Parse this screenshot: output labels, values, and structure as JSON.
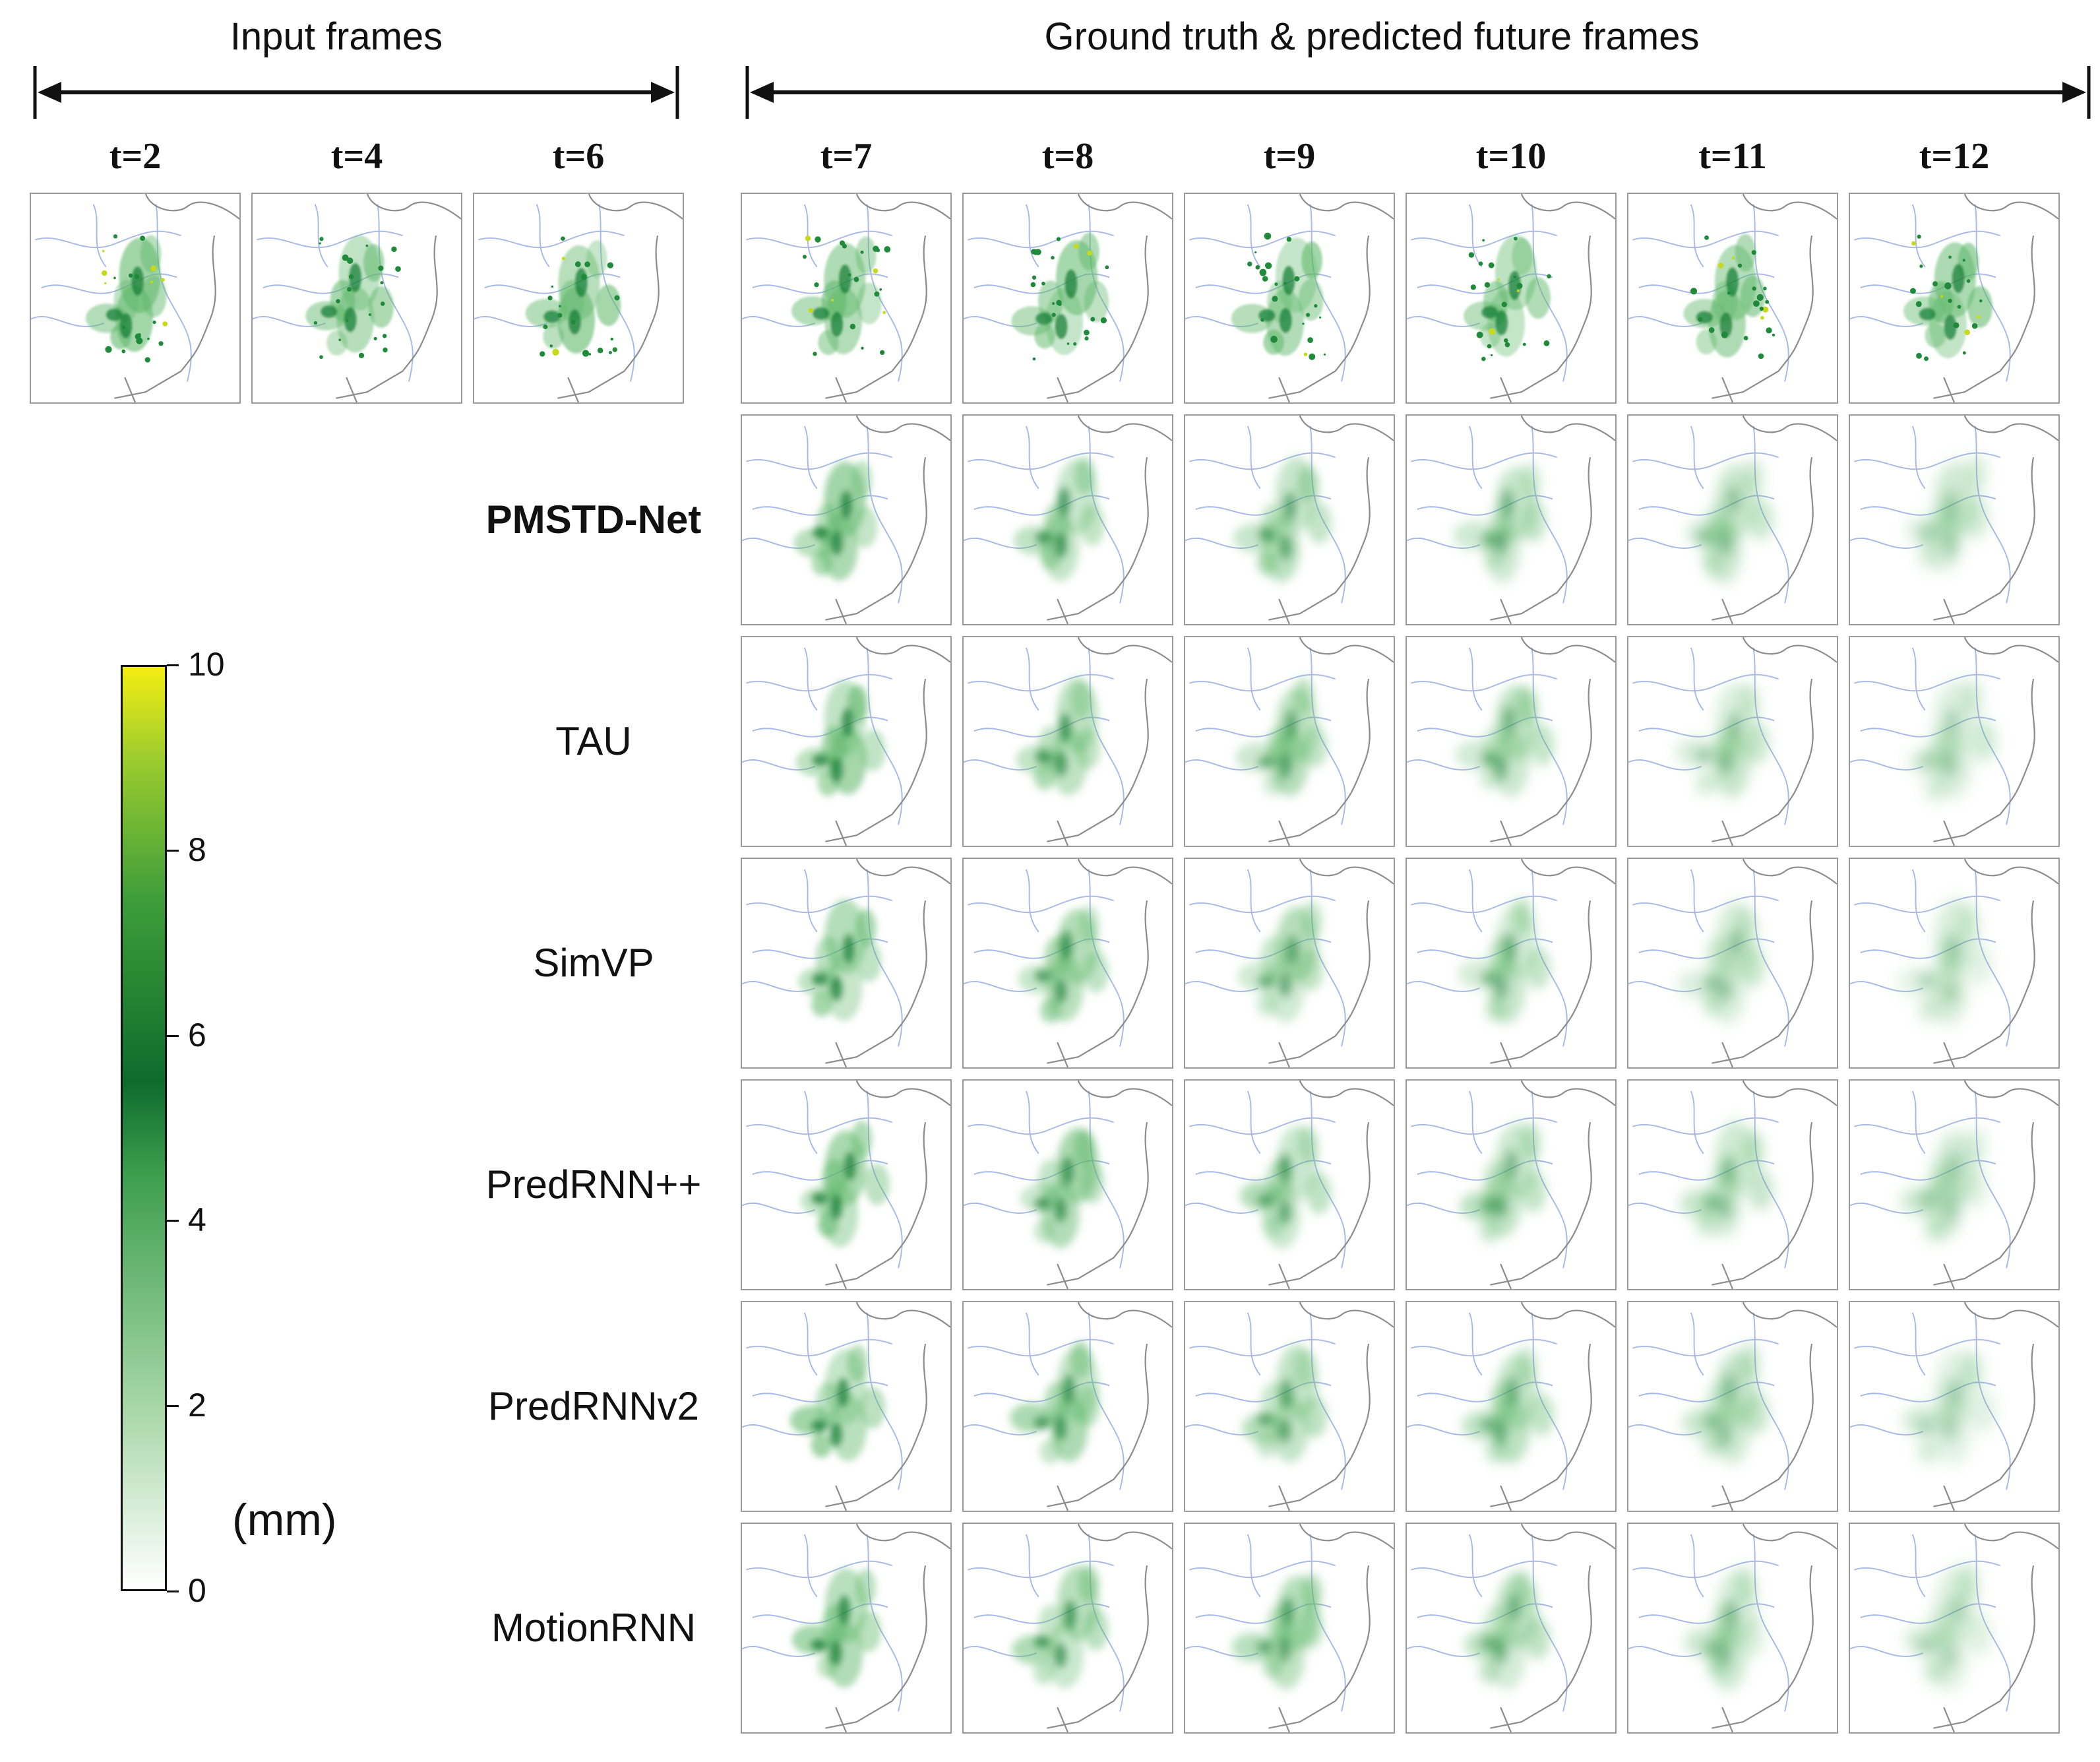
{
  "headers": {
    "input": "Input frames",
    "future": "Ground truth & predicted future frames"
  },
  "input_times": [
    "t=2",
    "t=4",
    "t=6"
  ],
  "future_times": [
    "t=7",
    "t=8",
    "t=9",
    "t=10",
    "t=11",
    "t=12"
  ],
  "rows": [
    {
      "label": "",
      "bold": false
    },
    {
      "label": "PMSTD-Net",
      "bold": true
    },
    {
      "label": "TAU",
      "bold": false
    },
    {
      "label": "SimVP",
      "bold": false
    },
    {
      "label": "PredRNN++",
      "bold": false
    },
    {
      "label": "PredRNNv2",
      "bold": false
    },
    {
      "label": "MotionRNN",
      "bold": false
    }
  ],
  "colorbar": {
    "ticks": [
      "10",
      "8",
      "6",
      "4",
      "2",
      "0"
    ],
    "min": 0,
    "max": 10,
    "unit": "(mm)",
    "colors": [
      "#ffffff",
      "#8cc98c",
      "#1f8f3f",
      "#0e6b2c",
      "#6ab23a",
      "#f0ec1a"
    ]
  }
}
